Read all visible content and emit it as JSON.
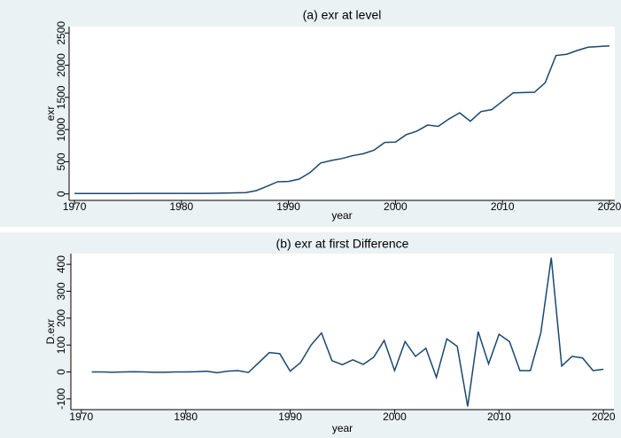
{
  "chart_data": [
    {
      "type": "line",
      "title": "(a) exr at level",
      "xlabel": "year",
      "ylabel": "exr",
      "x": [
        1970,
        1971,
        1972,
        1973,
        1974,
        1975,
        1976,
        1977,
        1978,
        1979,
        1980,
        1981,
        1982,
        1983,
        1984,
        1985,
        1986,
        1987,
        1988,
        1989,
        1990,
        1991,
        1992,
        1993,
        1994,
        1995,
        1996,
        1997,
        1998,
        1999,
        2000,
        2001,
        2002,
        2003,
        2004,
        2005,
        2006,
        2007,
        2008,
        2009,
        2010,
        2011,
        2012,
        2013,
        2014,
        2015,
        2016,
        2017,
        2018,
        2019,
        2020
      ],
      "values": [
        7,
        7,
        7,
        7,
        7,
        7,
        8,
        8,
        8,
        8,
        8,
        8,
        9,
        11,
        13,
        17,
        20,
        52,
        120,
        190,
        195,
        230,
        330,
        480,
        520,
        550,
        595,
        625,
        680,
        800,
        805,
        920,
        975,
        1070,
        1050,
        1165,
        1260,
        1130,
        1280,
        1310,
        1440,
        1570,
        1575,
        1580,
        1730,
        2150,
        2170,
        2230,
        2280,
        2290,
        2300
      ],
      "color": "#1a476f",
      "xlim": [
        1969.5,
        2020.5
      ],
      "xticks": [
        1970,
        1980,
        1990,
        2000,
        2010,
        2020
      ],
      "ylim": [
        -100,
        2600
      ],
      "yticks": [
        0,
        500,
        1000,
        1500,
        2000,
        2500
      ]
    },
    {
      "type": "line",
      "title": "(b) exr at first Difference",
      "xlabel": "year",
      "ylabel": "D.exr",
      "x": [
        1971,
        1972,
        1973,
        1974,
        1975,
        1976,
        1977,
        1978,
        1979,
        1980,
        1981,
        1982,
        1983,
        1984,
        1985,
        1986,
        1987,
        1988,
        1989,
        1990,
        1991,
        1992,
        1993,
        1994,
        1995,
        1996,
        1997,
        1998,
        1999,
        2000,
        2001,
        2002,
        2003,
        2004,
        2005,
        2006,
        2007,
        2008,
        2009,
        2010,
        2011,
        2012,
        2013,
        2014,
        2015,
        2016,
        2017,
        2018,
        2019,
        2020
      ],
      "values": [
        0,
        0,
        -1,
        0,
        1,
        0,
        -1,
        -1,
        0,
        0,
        1,
        3,
        -3,
        3,
        5,
        -2,
        35,
        72,
        68,
        3,
        35,
        100,
        145,
        42,
        27,
        45,
        28,
        55,
        117,
        5,
        113,
        58,
        88,
        -20,
        123,
        95,
        -128,
        150,
        30,
        140,
        113,
        5,
        5,
        145,
        425,
        22,
        58,
        52,
        5,
        10
      ],
      "color": "#1a476f",
      "xlim": [
        1969,
        2021
      ],
      "xticks": [
        1970,
        1980,
        1990,
        2000,
        2010,
        2020
      ],
      "ylim": [
        -140,
        440
      ],
      "yticks": [
        -100,
        0,
        100,
        200,
        300,
        400
      ]
    }
  ]
}
